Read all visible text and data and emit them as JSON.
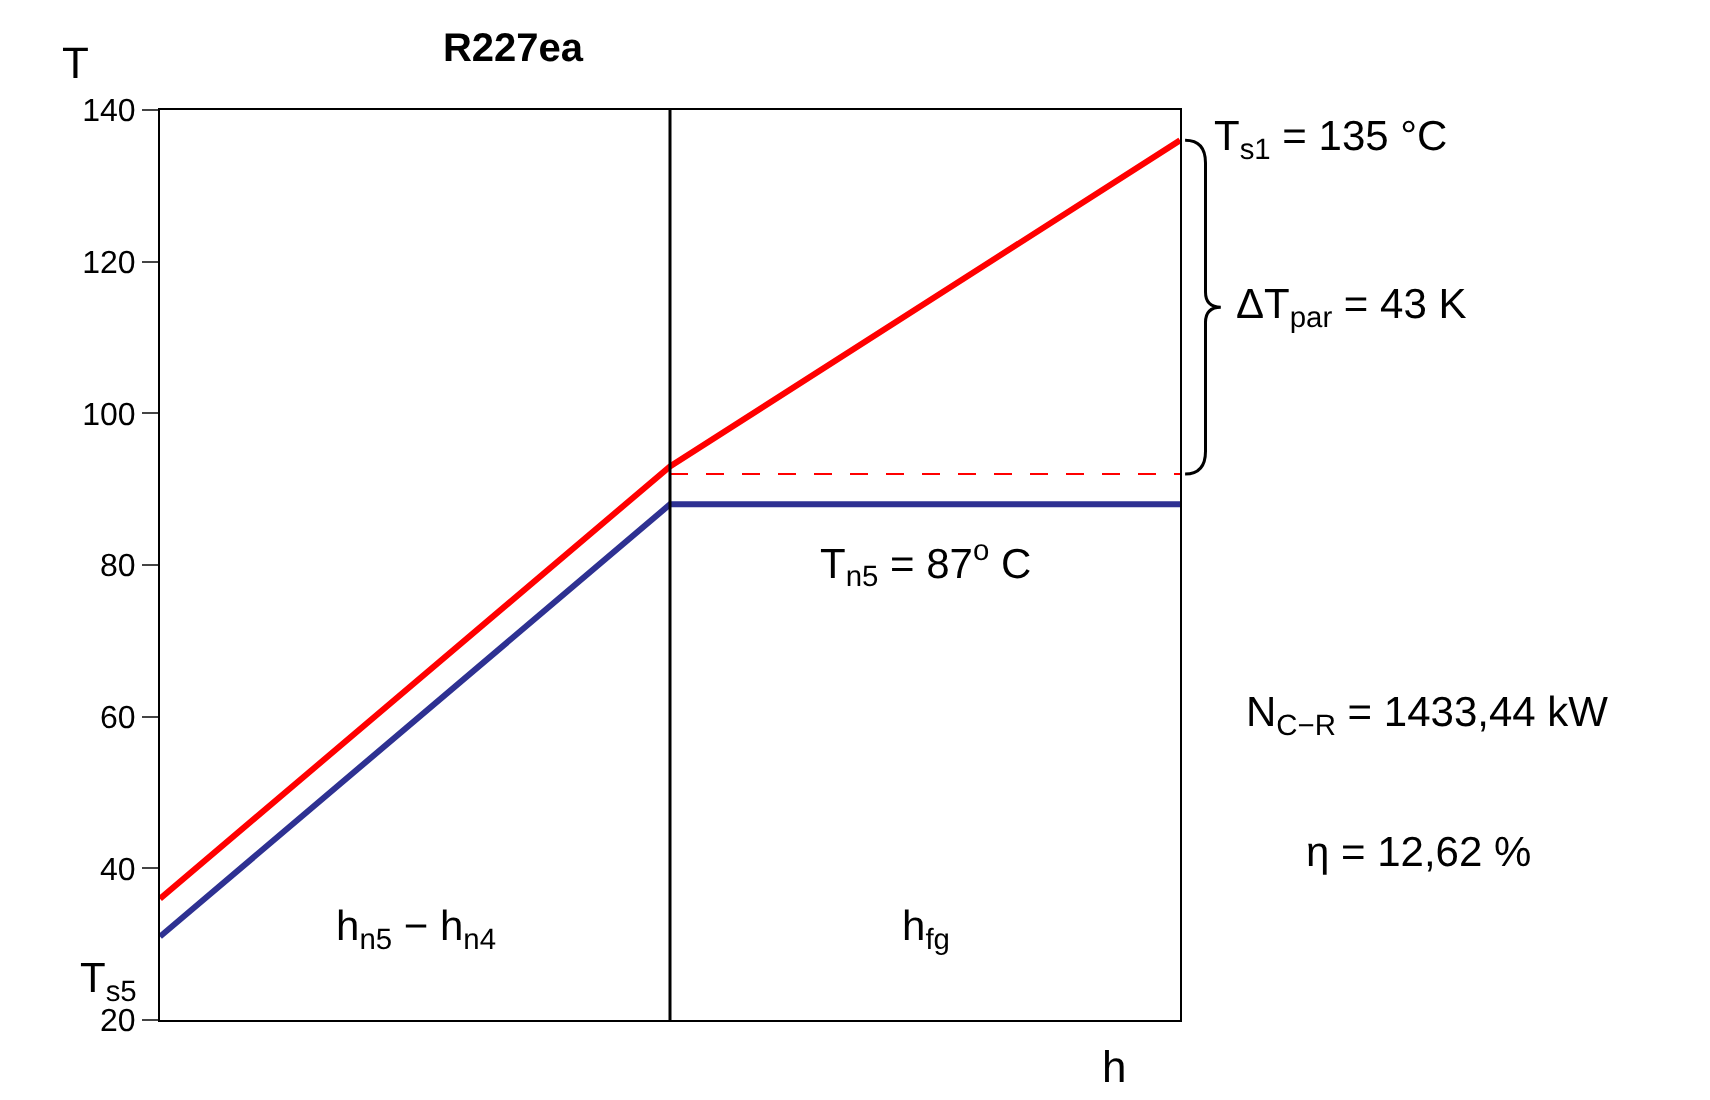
{
  "chart_data": {
    "type": "line",
    "title": "R227ea",
    "xlabel": "h",
    "ylabel": "T",
    "categories": [
      null,
      null,
      null
    ],
    "series": [
      {
        "color": "#ff0000",
        "values": [
          36,
          93,
          136
        ]
      },
      {
        "color": "#2e3192",
        "values": [
          31,
          88,
          88
        ]
      },
      {
        "color": "#ff0000",
        "values": [
          null,
          92,
          92
        ],
        "line_style": "dashed"
      }
    ],
    "ylim": [
      20,
      140
    ],
    "yticks": [
      20,
      40,
      60,
      80,
      100,
      120,
      140
    ],
    "annotations": [
      "h$_{n5}$ − h$_{n4}$",
      "h$_{fg}$",
      "T$_{s1}$ = 135 °C",
      "ΔT$_{par}$ = 43 K",
      "T$_{n5}$ = 87$^{o}$ C",
      "N$_{C−R}$ = 1433,44 kW",
      "η = 12,62 %",
      "T$_{s5}$"
    ],
    "line_style": "solid"
  }
}
